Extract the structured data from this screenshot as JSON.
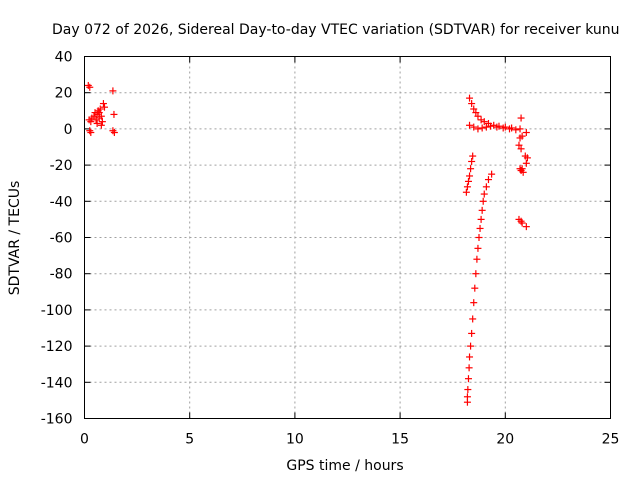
{
  "chart_data": {
    "type": "scatter",
    "title": "Day 072 of 2026, Sidereal Day-to-day VTEC variation (SDTVAR) for receiver kunu",
    "xlabel": "GPS time / hours",
    "ylabel": "SDTVAR / TECUs",
    "xlim": [
      0,
      25
    ],
    "ylim": [
      -160,
      40
    ],
    "xticks": [
      0,
      5,
      10,
      15,
      20,
      25
    ],
    "xtick_labels": [
      "0",
      "5",
      "10",
      "15",
      "20",
      "25"
    ],
    "yticks": [
      40,
      20,
      0,
      -20,
      -40,
      -60,
      -80,
      -100,
      -120,
      -140,
      -160
    ],
    "ytick_labels": [
      "40",
      "20",
      "0",
      "-20",
      "-40",
      "-60",
      "-80",
      "-100",
      "-120",
      "-140",
      "-160"
    ],
    "grid": true,
    "marker": "+",
    "color": "#ff0000",
    "series": [
      {
        "name": "SDTVAR",
        "points": [
          [
            0.18,
            24
          ],
          [
            0.25,
            23
          ],
          [
            0.22,
            5
          ],
          [
            0.3,
            4
          ],
          [
            0.35,
            6
          ],
          [
            0.45,
            7
          ],
          [
            0.55,
            5
          ],
          [
            0.6,
            8
          ],
          [
            0.65,
            10
          ],
          [
            0.7,
            9
          ],
          [
            0.75,
            11
          ],
          [
            0.8,
            7
          ],
          [
            0.85,
            4
          ],
          [
            0.6,
            3
          ],
          [
            0.7,
            6
          ],
          [
            0.5,
            9
          ],
          [
            0.9,
            14
          ],
          [
            0.95,
            12
          ],
          [
            0.8,
            2
          ],
          [
            0.25,
            -1
          ],
          [
            0.3,
            -2
          ],
          [
            1.35,
            21
          ],
          [
            1.4,
            8
          ],
          [
            1.35,
            -1
          ],
          [
            1.42,
            -2
          ],
          [
            18.3,
            17
          ],
          [
            18.4,
            14
          ],
          [
            18.5,
            11
          ],
          [
            18.6,
            9
          ],
          [
            18.7,
            7
          ],
          [
            18.85,
            5
          ],
          [
            19.0,
            4
          ],
          [
            19.2,
            3
          ],
          [
            19.45,
            2
          ],
          [
            19.7,
            1.5
          ],
          [
            20.0,
            1
          ],
          [
            20.3,
            0.5
          ],
          [
            18.3,
            2
          ],
          [
            18.5,
            1
          ],
          [
            18.7,
            0
          ],
          [
            18.9,
            0.5
          ],
          [
            19.1,
            1
          ],
          [
            19.3,
            1.5
          ],
          [
            19.6,
            1
          ],
          [
            19.9,
            0.5
          ],
          [
            20.2,
            0
          ],
          [
            20.5,
            -0.5
          ],
          [
            20.7,
            0
          ],
          [
            18.45,
            -15
          ],
          [
            18.4,
            -18
          ],
          [
            18.35,
            -22
          ],
          [
            18.3,
            -26
          ],
          [
            18.25,
            -29
          ],
          [
            18.2,
            -32
          ],
          [
            18.15,
            -35
          ],
          [
            19.35,
            -25
          ],
          [
            19.2,
            -28
          ],
          [
            19.1,
            -32
          ],
          [
            19.0,
            -36
          ],
          [
            18.95,
            -40
          ],
          [
            18.9,
            -45
          ],
          [
            18.85,
            -50
          ],
          [
            18.8,
            -55
          ],
          [
            18.75,
            -60
          ],
          [
            18.7,
            -66
          ],
          [
            18.65,
            -72
          ],
          [
            18.6,
            -80
          ],
          [
            18.55,
            -88
          ],
          [
            18.5,
            -96
          ],
          [
            18.45,
            -105
          ],
          [
            18.4,
            -113
          ],
          [
            18.35,
            -120
          ],
          [
            18.3,
            -126
          ],
          [
            18.28,
            -132
          ],
          [
            18.25,
            -138
          ],
          [
            18.22,
            -144
          ],
          [
            18.2,
            -148
          ],
          [
            18.2,
            -151
          ],
          [
            20.75,
            6
          ],
          [
            20.7,
            -5
          ],
          [
            20.65,
            -9
          ],
          [
            20.75,
            -11
          ],
          [
            20.8,
            -4
          ],
          [
            21.0,
            -2
          ],
          [
            20.95,
            -15
          ],
          [
            21.05,
            -16
          ],
          [
            21.0,
            -19
          ],
          [
            20.7,
            -22
          ],
          [
            20.75,
            -23
          ],
          [
            20.8,
            -22
          ],
          [
            20.85,
            -24
          ],
          [
            20.65,
            -50
          ],
          [
            20.75,
            -51
          ],
          [
            20.8,
            -52
          ],
          [
            21.0,
            -54
          ]
        ]
      }
    ]
  }
}
